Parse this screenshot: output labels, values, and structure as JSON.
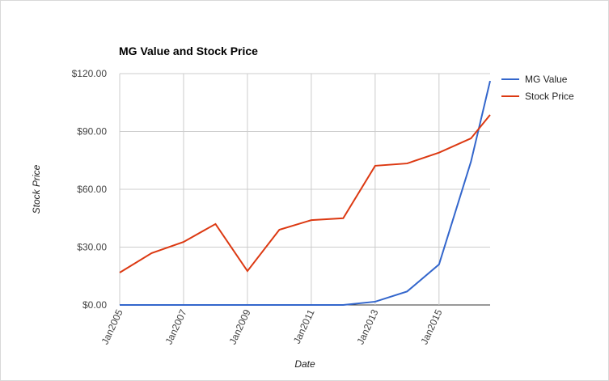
{
  "chart_data": {
    "type": "line",
    "title": "MG Value and Stock Price",
    "x_label": "Date",
    "y_label": "Stock Price",
    "x": [
      2005,
      2006,
      2007,
      2008,
      2009,
      2010,
      2011,
      2012,
      2013,
      2014,
      2015,
      2016,
      2016.6
    ],
    "series": [
      {
        "name": "MG Value",
        "color": "#3366cc",
        "values": [
          0,
          0,
          0,
          0,
          0,
          0,
          0,
          0,
          1.7,
          7,
          21,
          74.3,
          116.2
        ]
      },
      {
        "name": "Stock Price",
        "color": "#dc3912",
        "values": [
          16.8,
          26.9,
          32.7,
          42,
          17.6,
          39,
          44,
          45,
          72.2,
          73.4,
          79,
          86.4,
          98.6
        ]
      }
    ],
    "xlim": [
      2005,
      2016.6
    ],
    "xticks": [
      {
        "value": 2005,
        "label": "Jan2005"
      },
      {
        "value": 2007,
        "label": "Jan2007"
      },
      {
        "value": 2009,
        "label": "Jan2009"
      },
      {
        "value": 2011,
        "label": "Jan2011"
      },
      {
        "value": 2013,
        "label": "Jan2013"
      },
      {
        "value": 2015,
        "label": "Jan2015"
      }
    ],
    "ylim": [
      0,
      120
    ],
    "yticks": [
      {
        "value": 0,
        "label": "$0.00"
      },
      {
        "value": 30,
        "label": "$30.00"
      },
      {
        "value": 60,
        "label": "$60.00"
      },
      {
        "value": 90,
        "label": "$90.00"
      },
      {
        "value": 120,
        "label": "$120.00"
      }
    ],
    "grid": true,
    "legend": "right"
  }
}
